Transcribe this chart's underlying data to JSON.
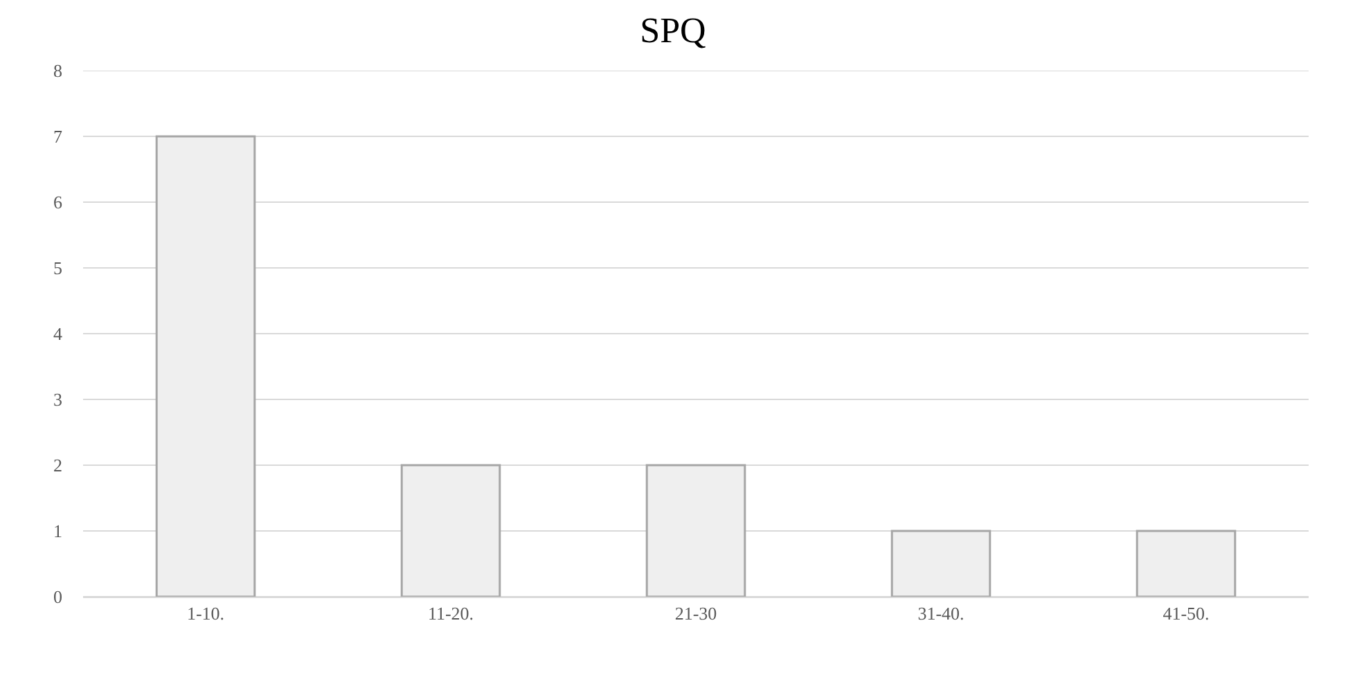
{
  "chart_data": {
    "type": "bar",
    "title": "SPQ",
    "categories": [
      "1-10.",
      "11-20.",
      "21-30",
      "31-40.",
      "41-50."
    ],
    "values": [
      7,
      2,
      2,
      1,
      1
    ],
    "color": "#efefef",
    "ylim": [
      0,
      8
    ],
    "yticks": [
      0,
      1,
      2,
      3,
      4,
      5,
      6,
      7,
      8
    ],
    "grid": "y"
  }
}
